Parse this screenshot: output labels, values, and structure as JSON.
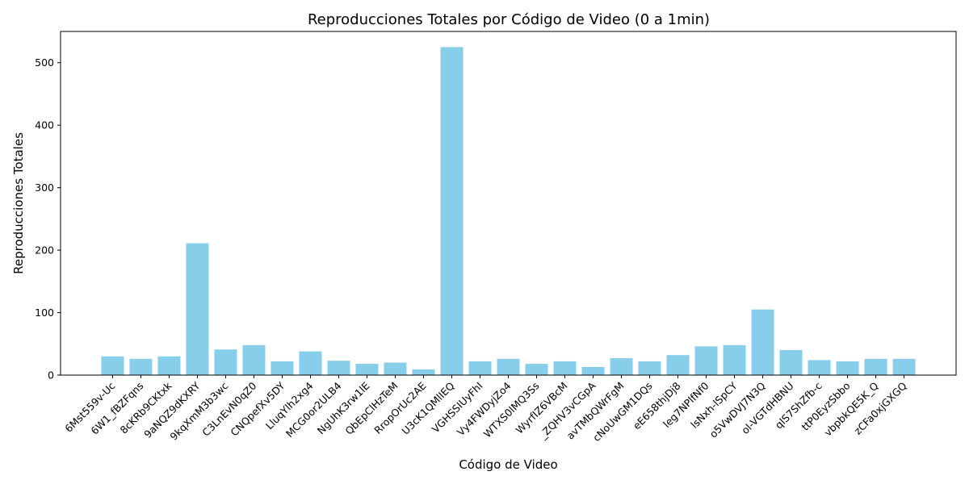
{
  "chart_data": {
    "type": "bar",
    "title": "Reproducciones Totales por Código de Video (0 a 1min)",
    "xlabel": "Código de Video",
    "ylabel": "Reproducciones Totales",
    "ylim": [
      0,
      550
    ],
    "yticks": [
      0,
      100,
      200,
      300,
      400,
      500
    ],
    "grid": false,
    "bar_color": "#87ceeb",
    "categories": [
      "6Mst559v-Uc",
      "6W1_fBZFqns",
      "8cKRb9CKtxk",
      "9aNQZ9dKXRY",
      "9kqXmM3b3wc",
      "C3LnEvN0qZ0",
      "CNQpefXv5DY",
      "LluqYlh2xg4",
      "MCG0or2ULB4",
      "NgUhK3rw1lE",
      "QbEpClHzTeM",
      "RropOrUc2AE",
      "U3cK1QMlIEQ",
      "VGHSSIUyFhI",
      "Vy4FWDyjZo4",
      "WTXS0lMQ3Ss",
      "WyrfIZ6VBcM",
      "_ZQHV3vCGpA",
      "avTMbQWrFgM",
      "cNoUwGM1DQs",
      "eE658thjDj8",
      "leg7NPlfNf0",
      "lsNxh-lSpCY",
      "o5VwDVJ7N3Q",
      "ol-VGTdHBNU",
      "qlS7ShZfb-c",
      "ttP0EyzSbbo",
      "vbpbkQE5K_Q",
      "zCFa0xjGXGQ"
    ],
    "values": [
      30,
      26,
      30,
      211,
      41,
      48,
      22,
      38,
      23,
      18,
      20,
      9,
      525,
      22,
      26,
      18,
      22,
      13,
      27,
      22,
      32,
      46,
      48,
      105,
      40,
      24,
      22,
      26,
      26
    ]
  }
}
